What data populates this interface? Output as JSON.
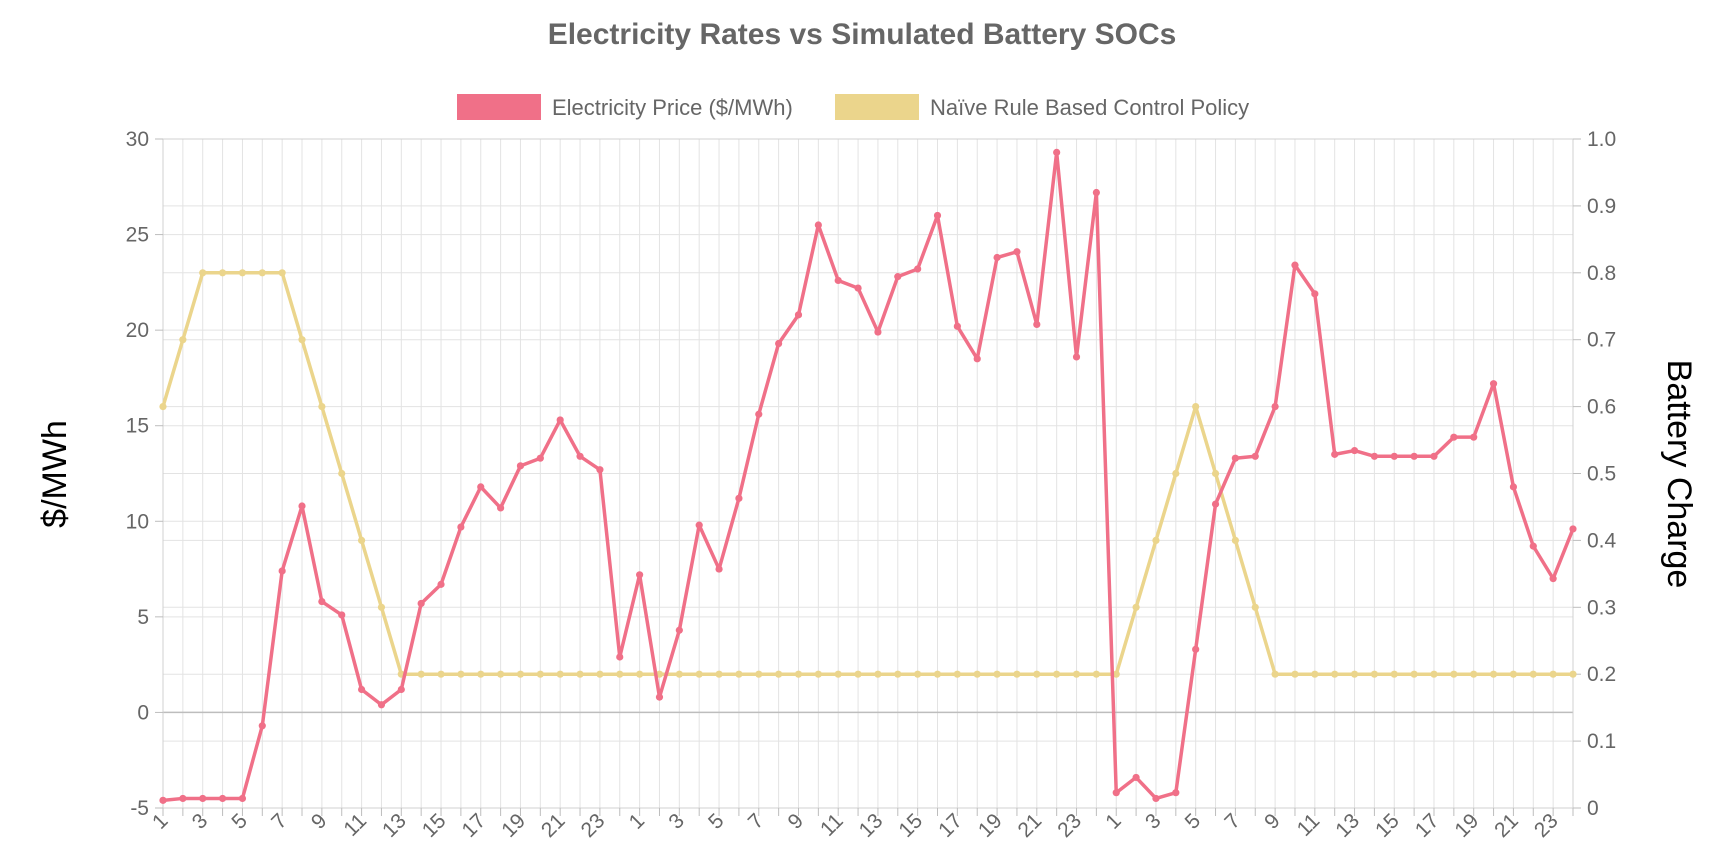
{
  "chart_data": {
    "type": "line",
    "title": "Electricity Rates vs Simulated Battery SOCs",
    "xlabel": "",
    "ylabel": "$/MWh",
    "y2label": "Battery Charge",
    "ylim": [
      -5,
      30
    ],
    "y2lim": [
      0,
      1.0
    ],
    "yticks": [
      -5,
      0,
      5,
      10,
      15,
      20,
      25,
      30
    ],
    "y2ticks": [
      0,
      0.1,
      0.2,
      0.3,
      0.4,
      0.5,
      0.6,
      0.7,
      0.8,
      0.9,
      1.0
    ],
    "ytick_labels": [
      "-5",
      "0",
      "5",
      "10",
      "15",
      "20",
      "25",
      "30"
    ],
    "y2tick_labels": [
      "0",
      "0.1",
      "0.2",
      "0.3",
      "0.4",
      "0.5",
      "0.6",
      "0.7",
      "0.8",
      "0.9",
      "1.0"
    ],
    "grid": true,
    "legend_position": "top",
    "categories": [
      "1",
      "2",
      "3",
      "4",
      "5",
      "6",
      "7",
      "8",
      "9",
      "10",
      "11",
      "12",
      "13",
      "14",
      "15",
      "16",
      "17",
      "18",
      "19",
      "20",
      "21",
      "22",
      "23",
      "24",
      "1",
      "2",
      "3",
      "4",
      "5",
      "6",
      "7",
      "8",
      "9",
      "10",
      "11",
      "12",
      "13",
      "14",
      "15",
      "16",
      "17",
      "18",
      "19",
      "20",
      "21",
      "22",
      "23",
      "24",
      "1",
      "2",
      "3",
      "4",
      "5",
      "6",
      "7",
      "8",
      "9",
      "10",
      "11",
      "12",
      "13",
      "14",
      "15",
      "16",
      "17",
      "18",
      "19",
      "20",
      "21",
      "22",
      "23",
      "24"
    ],
    "series": [
      {
        "name": "Electricity Price ($/MWh)",
        "axis": "left",
        "color": "#f07088",
        "values": [
          -4.6,
          -4.5,
          -4.5,
          -4.5,
          -4.5,
          -0.7,
          7.4,
          10.8,
          5.8,
          5.1,
          1.2,
          0.4,
          1.2,
          5.7,
          6.7,
          9.7,
          11.8,
          10.7,
          12.9,
          13.3,
          15.3,
          13.4,
          12.7,
          2.9,
          7.2,
          0.8,
          4.3,
          9.8,
          7.5,
          11.2,
          15.6,
          19.3,
          20.8,
          25.5,
          22.6,
          22.2,
          19.9,
          22.8,
          23.2,
          26.0,
          20.2,
          18.5,
          23.8,
          24.1,
          20.3,
          29.3,
          18.6,
          27.2,
          -4.2,
          -3.4,
          -4.5,
          -4.2,
          3.3,
          10.9,
          13.3,
          13.4,
          16.0,
          23.4,
          21.9,
          13.5,
          13.7,
          13.4,
          13.4,
          13.4,
          13.4,
          14.4,
          14.4,
          17.2,
          11.8,
          8.7,
          7.0,
          9.6
        ]
      },
      {
        "name": "Naïve Rule Based Control Policy",
        "axis": "right",
        "color": "#ebd58c",
        "values": [
          0.6,
          0.7,
          0.8,
          0.8,
          0.8,
          0.8,
          0.8,
          0.7,
          0.6,
          0.5,
          0.4,
          0.3,
          0.2,
          0.2,
          0.2,
          0.2,
          0.2,
          0.2,
          0.2,
          0.2,
          0.2,
          0.2,
          0.2,
          0.2,
          0.2,
          0.2,
          0.2,
          0.2,
          0.2,
          0.2,
          0.2,
          0.2,
          0.2,
          0.2,
          0.2,
          0.2,
          0.2,
          0.2,
          0.2,
          0.2,
          0.2,
          0.2,
          0.2,
          0.2,
          0.2,
          0.2,
          0.2,
          0.2,
          0.2,
          0.3,
          0.4,
          0.5,
          0.6,
          0.5,
          0.4,
          0.3,
          0.2,
          0.2,
          0.2,
          0.2,
          0.2,
          0.2,
          0.2,
          0.2,
          0.2,
          0.2,
          0.2,
          0.2,
          0.2,
          0.2,
          0.2,
          0.2
        ]
      }
    ]
  }
}
